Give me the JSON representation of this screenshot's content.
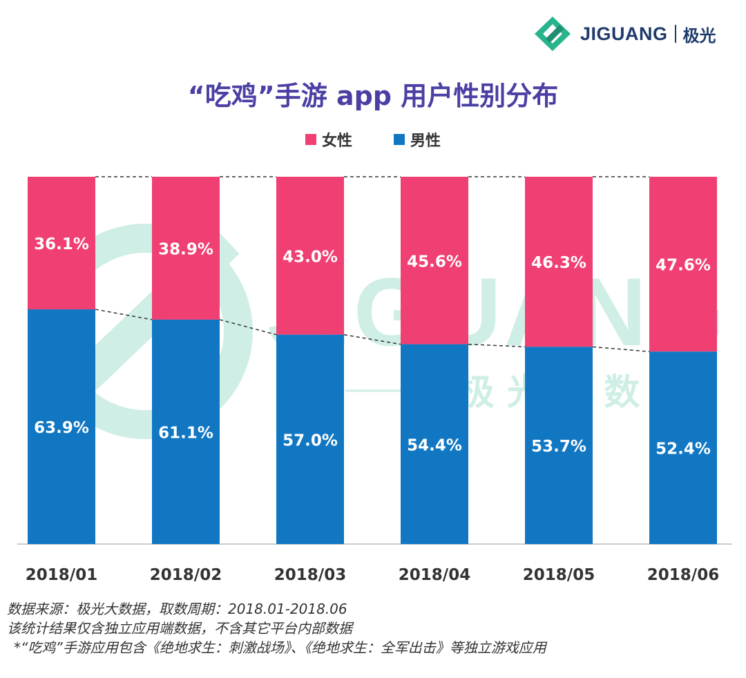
{
  "logo": {
    "brand": "JIGUANG",
    "cn": "极光"
  },
  "watermark": {
    "brand": "JIGUANG",
    "cn": "极 光 大 数 据"
  },
  "colors": {
    "female": "#f03f72",
    "male": "#1177c3",
    "title": "#4a3fa3",
    "brand_green": "#28b48c"
  },
  "chart_data": {
    "type": "bar",
    "stacked": true,
    "title": "“吃鸡”手游 app 用户性别分布",
    "categories": [
      "2018/01",
      "2018/02",
      "2018/03",
      "2018/04",
      "2018/05",
      "2018/06"
    ],
    "series": [
      {
        "name": "女性",
        "values": [
          36.1,
          38.9,
          43.0,
          45.6,
          46.3,
          47.6
        ],
        "labels": [
          "36.1%",
          "38.9%",
          "43.0%",
          "45.6%",
          "46.3%",
          "47.6%"
        ]
      },
      {
        "name": "男性",
        "values": [
          63.9,
          61.1,
          57.0,
          54.4,
          53.7,
          52.4
        ],
        "labels": [
          "63.9%",
          "61.1%",
          "57.0%",
          "54.4%",
          "53.7%",
          "52.4%"
        ]
      }
    ],
    "ylim": [
      0,
      100
    ],
    "legend": "top-center",
    "xlabel": "",
    "ylabel": ""
  },
  "notes": [
    "数据来源：极光大数据，取数周期：2018.01-2018.06",
    "该统计结果仅含独立应用端数据，不含其它平台内部数据",
    "*“吃鸡”手游应用包含《绝地求生：刺激战场》、《绝地求生：全军出击》等独立游戏应用"
  ]
}
